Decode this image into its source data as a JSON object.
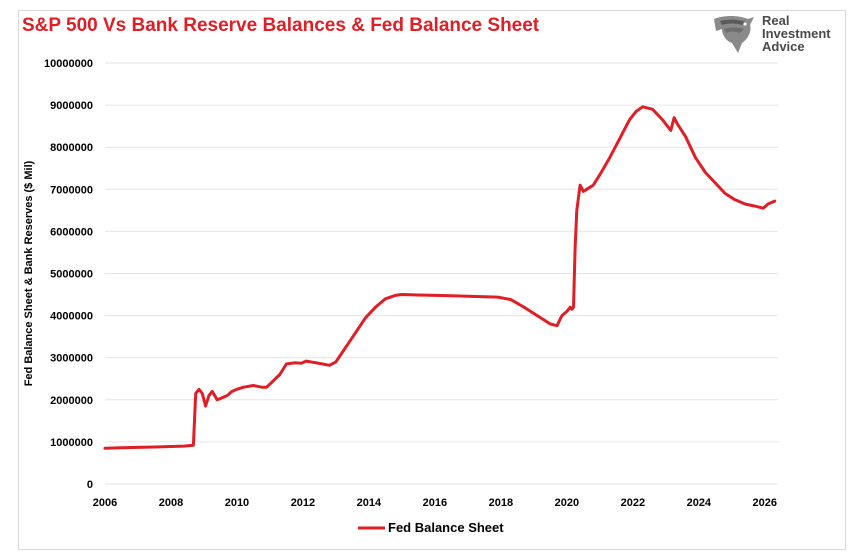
{
  "header": {
    "title": "S&P 500 Vs Bank Reserve Balances & Fed Balance Sheet"
  },
  "logo": {
    "line1": "Real",
    "line2": "Investment",
    "line3": "Advice",
    "icon": "eagle-icon"
  },
  "colors": {
    "series": "#e01e26",
    "title": "#e01e26",
    "grid": "#e6e6e6",
    "axis_text": "#000000"
  },
  "chart_data": {
    "type": "line",
    "title": "S&P 500 Vs Bank Reserve Balances & Fed Balance Sheet",
    "xlabel": "",
    "ylabel": "Fed Balance Sheet & Bank Reserves ($ Mil)",
    "xlim": [
      2006,
      2026.4
    ],
    "ylim": [
      0,
      10000000
    ],
    "x_ticks": [
      "2006",
      "2008",
      "2010",
      "2012",
      "2014",
      "2016",
      "2018",
      "2020",
      "2022",
      "2024",
      "2026"
    ],
    "y_ticks": [
      "0",
      "1000000",
      "2000000",
      "3000000",
      "4000000",
      "5000000",
      "6000000",
      "7000000",
      "8000000",
      "9000000",
      "10000000"
    ],
    "grid": true,
    "legend": "bottom",
    "series": [
      {
        "name": "Fed Balance Sheet",
        "x": [
          2006.0,
          2006.5,
          2007.0,
          2007.5,
          2008.0,
          2008.4,
          2008.68,
          2008.75,
          2008.85,
          2008.95,
          2009.05,
          2009.15,
          2009.25,
          2009.4,
          2009.55,
          2009.7,
          2009.85,
          2010.0,
          2010.2,
          2010.5,
          2010.75,
          2010.9,
          2011.1,
          2011.3,
          2011.5,
          2011.75,
          2011.95,
          2012.1,
          2012.4,
          2012.6,
          2012.8,
          2013.0,
          2013.3,
          2013.6,
          2013.9,
          2014.2,
          2014.5,
          2014.8,
          2015.0,
          2015.5,
          2016.0,
          2016.5,
          2017.0,
          2017.5,
          2017.9,
          2018.3,
          2018.7,
          2019.1,
          2019.5,
          2019.7,
          2019.85,
          2020.0,
          2020.1,
          2020.15,
          2020.2,
          2020.25,
          2020.3,
          2020.4,
          2020.5,
          2020.6,
          2020.8,
          2021.0,
          2021.3,
          2021.6,
          2021.9,
          2022.1,
          2022.3,
          2022.6,
          2022.9,
          2023.15,
          2023.25,
          2023.35,
          2023.6,
          2023.9,
          2024.2,
          2024.5,
          2024.8,
          2025.1,
          2025.4,
          2025.7,
          2025.95,
          2026.1,
          2026.3
        ],
        "values": [
          850000,
          860000,
          870000,
          880000,
          890000,
          900000,
          920000,
          2150000,
          2250000,
          2150000,
          1850000,
          2100000,
          2200000,
          2000000,
          2050000,
          2100000,
          2200000,
          2250000,
          2300000,
          2340000,
          2300000,
          2300000,
          2450000,
          2600000,
          2850000,
          2880000,
          2870000,
          2920000,
          2880000,
          2850000,
          2820000,
          2900000,
          3250000,
          3600000,
          3950000,
          4200000,
          4400000,
          4480000,
          4500000,
          4490000,
          4480000,
          4470000,
          4460000,
          4450000,
          4440000,
          4380000,
          4200000,
          4000000,
          3800000,
          3760000,
          4000000,
          4100000,
          4200000,
          4150000,
          4200000,
          5600000,
          6500000,
          7100000,
          6950000,
          7000000,
          7100000,
          7350000,
          7750000,
          8200000,
          8650000,
          8850000,
          8960000,
          8900000,
          8650000,
          8400000,
          8700000,
          8550000,
          8250000,
          7750000,
          7400000,
          7150000,
          6900000,
          6750000,
          6650000,
          6600000,
          6550000,
          6650000,
          6720000
        ]
      }
    ]
  }
}
